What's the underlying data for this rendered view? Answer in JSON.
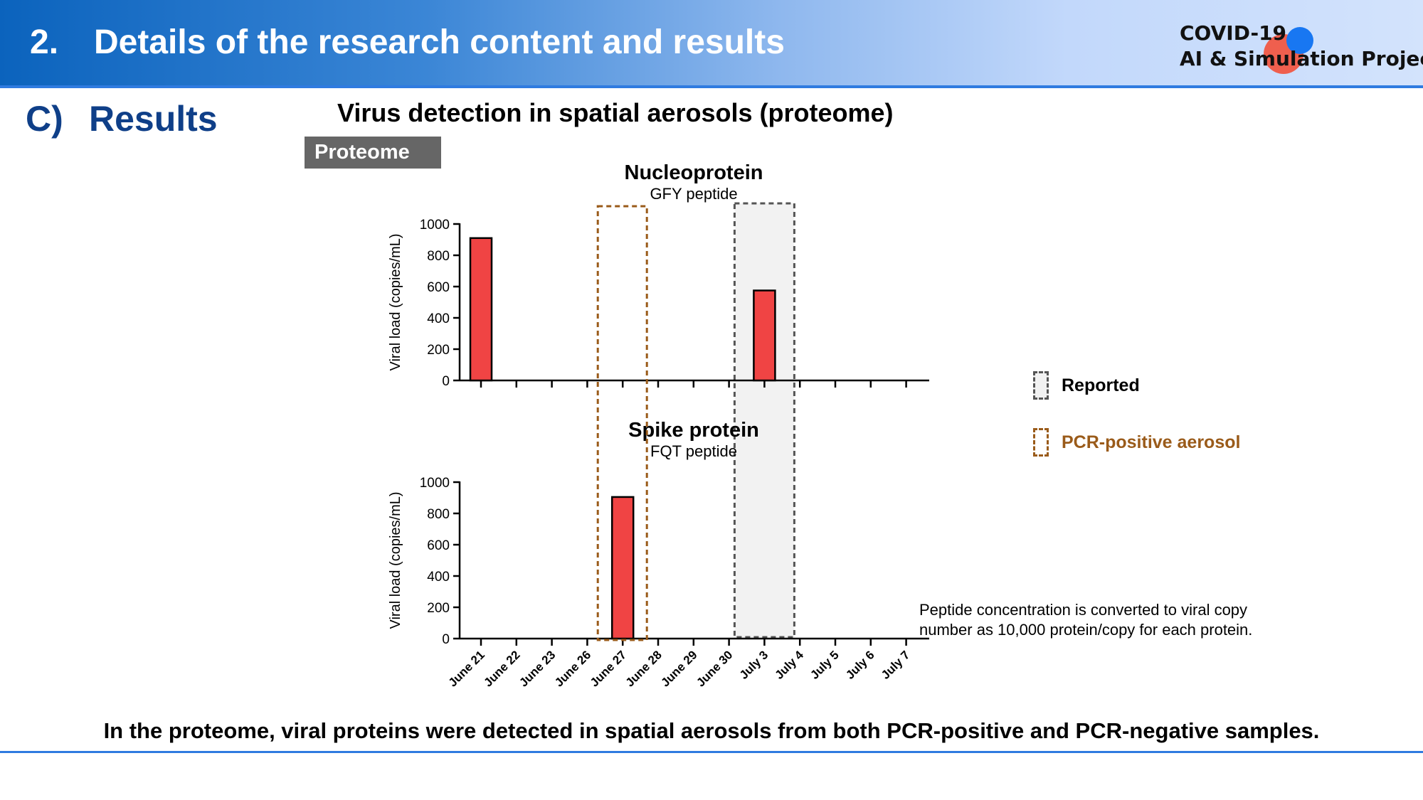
{
  "header": {
    "number": "2.",
    "title": "Details of the research content and results",
    "project_line1": "COVID-19",
    "project_line2": "AI & Simulation Project"
  },
  "section": {
    "letter": "C)",
    "title": "Results"
  },
  "main_title": "Virus detection in spatial aerosols (proteome)",
  "badge": "Proteome",
  "legend": {
    "reported": "Reported",
    "pcr_positive": "PCR-positive aerosol"
  },
  "note": "Peptide concentration is converted to viral copy number as 10,000 protein/copy for each protein.",
  "conclusion": "In the proteome, viral proteins were detected in spatial aerosols from both PCR-positive and PCR-negative samples.",
  "colors": {
    "bar": "#f04444",
    "reported_fill": "#f2f2f2",
    "reported_border": "#555555",
    "pcr_border": "#9a5b1a",
    "section": "#0f3f88",
    "accent": "#2f7be0"
  },
  "chart_data": [
    {
      "type": "bar",
      "title": "Nucleoprotein",
      "subtitle": "GFY peptide",
      "ylabel": "Viral load (copies/mL)",
      "ylim": [
        0,
        1000
      ],
      "yticks": [
        0,
        200,
        400,
        600,
        800,
        1000
      ],
      "categories": [
        "June 21",
        "June 22",
        "June 23",
        "June 26",
        "June 27",
        "June 28",
        "June 29",
        "June 30",
        "July 3",
        "July 4",
        "July 5",
        "July 6",
        "July 7"
      ],
      "values": [
        910,
        0,
        0,
        0,
        0,
        0,
        0,
        0,
        575,
        0,
        0,
        0,
        0
      ],
      "show_xlabels": false
    },
    {
      "type": "bar",
      "title": "Spike protein",
      "subtitle": "FQT peptide",
      "ylabel": "Viral load (copies/mL)",
      "ylim": [
        0,
        1000
      ],
      "yticks": [
        0,
        200,
        400,
        600,
        800,
        1000
      ],
      "categories": [
        "June 21",
        "June 22",
        "June 23",
        "June 26",
        "June 27",
        "June 28",
        "June 29",
        "June 30",
        "July 3",
        "July 4",
        "July 5",
        "July 6",
        "July 7"
      ],
      "values": [
        0,
        0,
        0,
        0,
        905,
        0,
        0,
        0,
        0,
        0,
        0,
        0,
        0
      ],
      "show_xlabels": true
    }
  ],
  "highlights": {
    "pcr_positive": "June 27",
    "reported": "July 3"
  }
}
